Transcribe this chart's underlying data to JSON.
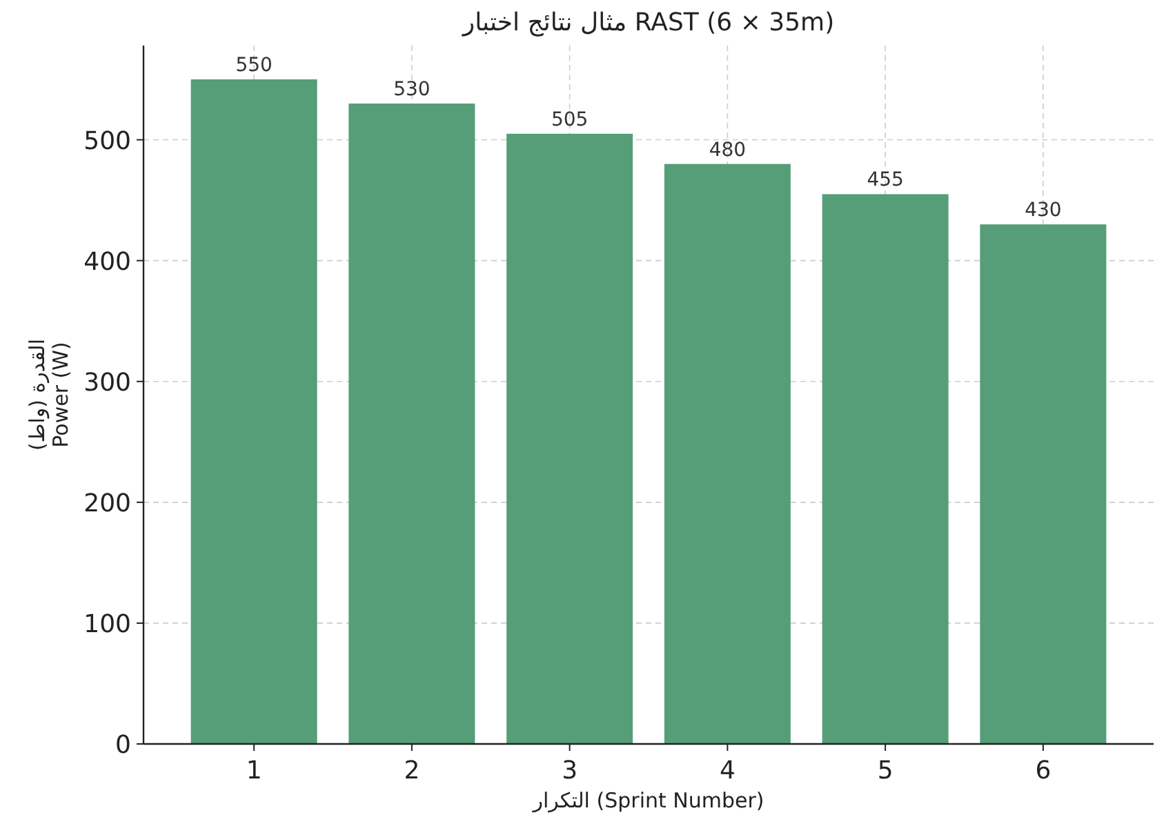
{
  "chart_data": {
    "type": "bar",
    "title": "مثال نتائج اختبار RAST (6 × 35m)",
    "xlabel": "التكرار (Sprint Number)",
    "ylabel": "القدرة (واط) Power (W)",
    "categories": [
      "1",
      "2",
      "3",
      "4",
      "5",
      "6"
    ],
    "values": [
      550,
      530,
      505,
      480,
      455,
      430
    ],
    "color": "#559e77",
    "ylim": [
      0,
      578
    ],
    "yticks": [
      0,
      100,
      200,
      300,
      400,
      500
    ],
    "grid": true,
    "data_labels": true
  }
}
